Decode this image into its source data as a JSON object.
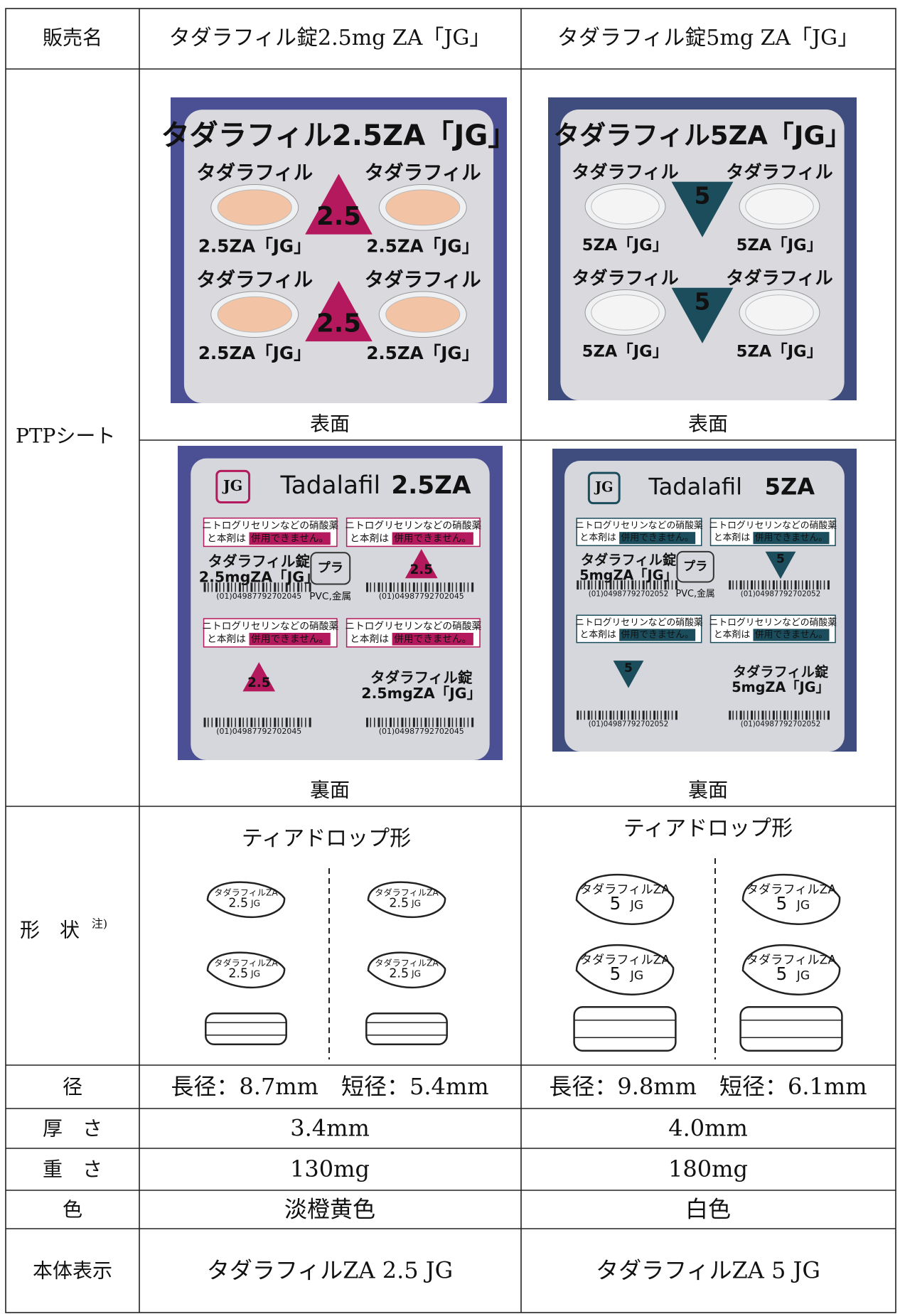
{
  "table": {
    "header": [
      "販売名",
      "タダラフィル錠2.5mg ZA「JG」",
      "タダラフィル錠5mg ZA「JG」"
    ],
    "ptp": {
      "label": "PTPシート",
      "front_label": "表面",
      "back_label": "裏面",
      "sheets": [
        {
          "front_title": "タダラフィル2.5ZA「JG」",
          "front_row_label": "タダラフィル",
          "front_code": "2.5ZA「JG」",
          "mark": "2.5",
          "back_brand": "Tadalafil",
          "back_strength": "2.5ZA",
          "back_logo": "JG",
          "warning": [
            "ニトログリセリンなどの硝酸薬",
            "と本剤は",
            "併用できません。"
          ],
          "back_name": [
            "タダラフィル錠",
            "2.5mgZA「JG」"
          ],
          "recycle_mark": "プラ",
          "recycle": "PVC,金属",
          "barcode": "(01)04987792702045"
        },
        {
          "front_title": "タダラフィル5ZA「JG」",
          "front_row_label": "タダラフィル",
          "front_code": "5ZA「JG」",
          "mark": "5",
          "back_brand": "Tadalafil",
          "back_strength": "5ZA",
          "back_logo": "JG",
          "warning": [
            "ニトログリセリンなどの硝酸薬",
            "と本剤は",
            "併用できません。"
          ],
          "back_name": [
            "タダラフィル錠",
            "5mgZA「JG」"
          ],
          "recycle_mark": "プラ",
          "recycle": "PVC,金属",
          "barcode": "(01)04987792702052"
        }
      ]
    },
    "shape": {
      "label": "形　状",
      "note": "注)",
      "products": [
        {
          "name": "ティアドロップ形",
          "imprint": [
            "タダラフィルZA",
            "2.5",
            "JG"
          ]
        },
        {
          "name": "ティアドロップ形",
          "imprint": [
            "タダラフィルZA",
            "5",
            "JG"
          ]
        }
      ]
    },
    "rows": [
      [
        "径",
        "長径：8.7mm　短径：5.4mm",
        "長径：9.8mm　短径：6.1mm"
      ],
      [
        "厚　さ",
        "3.4mm",
        "4.0mm"
      ],
      [
        "重　さ",
        "130mg",
        "180mg"
      ],
      [
        "色",
        "淡橙黄色",
        "白色"
      ],
      [
        "本体表示",
        "タダラフィルZA 2.5 JG",
        "タダラフィルZA 5 JG"
      ]
    ]
  }
}
